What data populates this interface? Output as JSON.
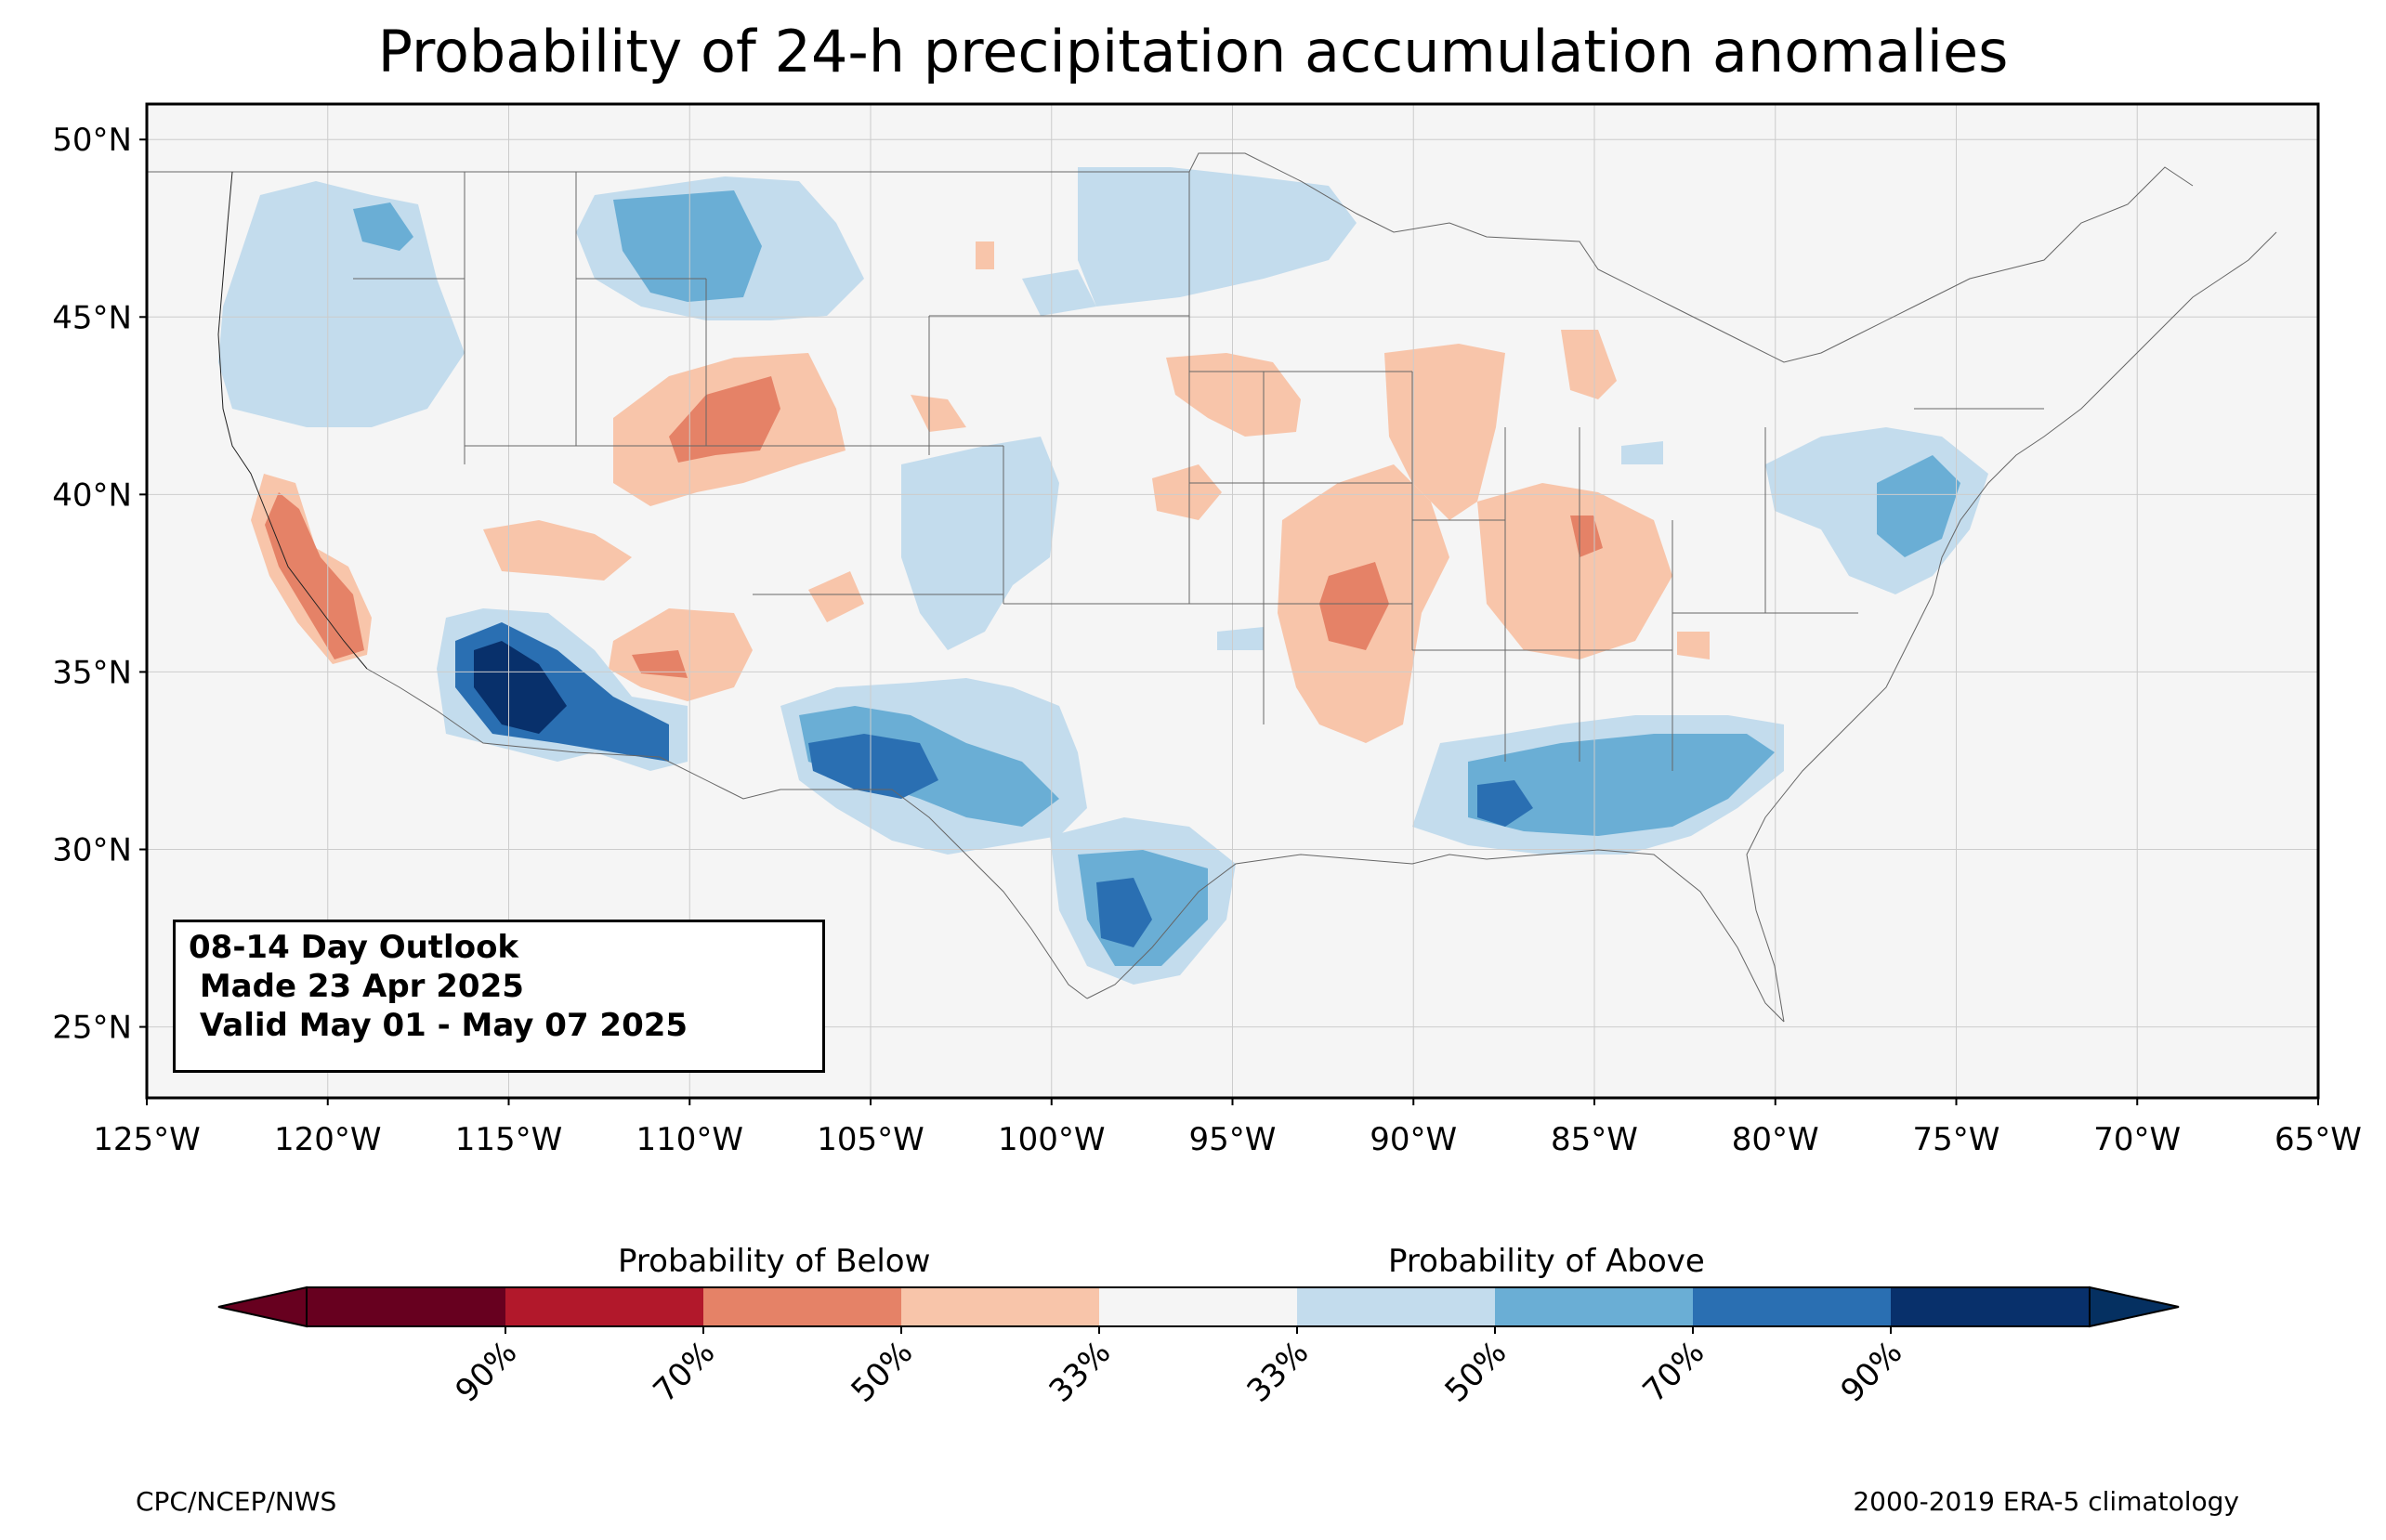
{
  "title": "Probability of 24-h precipitation accumulation anomalies",
  "map": {
    "extent": {
      "lon_min": -125,
      "lon_max": -65,
      "lat_min": 23,
      "lat_max": 51
    },
    "lat_ticks": [
      "50°N",
      "45°N",
      "40°N",
      "35°N",
      "30°N",
      "25°N"
    ],
    "lon_ticks": [
      "125°W",
      "120°W",
      "115°W",
      "110°W",
      "105°W",
      "100°W",
      "95°W",
      "90°W",
      "85°W",
      "80°W",
      "75°W",
      "70°W",
      "65°W"
    ],
    "background": "#f5f5f5",
    "grid": true
  },
  "info_box": {
    "line1": "08-14 Day Outlook",
    "line2": " Made 23 Apr 2025",
    "line3": " Valid May 01 - May 07 2025"
  },
  "colorbar": {
    "below_label": "Probability of Below",
    "above_label": "Probability of Above",
    "colors": [
      "#67001f",
      "#b2182b",
      "#d6604d",
      "#f4a582",
      "#fddbc7",
      "#f5f5f5",
      "#d1e5f0",
      "#92c5de",
      "#4393c3",
      "#2166ac",
      "#053061"
    ],
    "bins": [
      "#67001f",
      "#b2182b",
      "#e58267",
      "#f8c5aa",
      "#f5f5f5",
      "#c3dced",
      "#6aaed5",
      "#2a6fb2",
      "#08306b"
    ],
    "tick_labels": [
      "90%",
      "70%",
      "50%",
      "33%",
      "33%",
      "50%",
      "70%",
      "90%"
    ]
  },
  "credits": {
    "left": "CPC/NCEP/NWS",
    "right": "2000-2019 ERA-5 climatology"
  }
}
